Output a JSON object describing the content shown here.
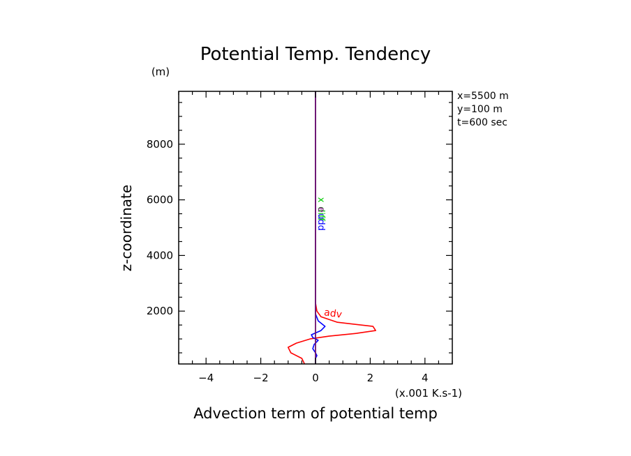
{
  "chart_data": {
    "type": "line",
    "title": "Potential Temp. Tendency",
    "xlabel": "Advection term of potential temp",
    "ylabel": "z-coordinate",
    "x_unit": "(x.001 K.s-1)",
    "y_unit": "(m)",
    "xlim": [
      -5,
      5
    ],
    "ylim": [
      100,
      9900
    ],
    "x_ticks": [
      -4,
      -2,
      0,
      2,
      4
    ],
    "x_tick_labels": [
      "−4",
      "−2",
      "0",
      "2",
      "4"
    ],
    "y_ticks": [
      2000,
      4000,
      6000,
      8000
    ],
    "y_tick_labels": [
      "2000",
      "4000",
      "6000",
      "8000"
    ],
    "grid": false,
    "info_lines": [
      "x=5500 m",
      "y=100 m",
      "t=600 sec"
    ],
    "series": [
      {
        "name": "adv",
        "color": "#ff0000",
        "points": [
          [
            -0.4,
            100
          ],
          [
            -0.5,
            300
          ],
          [
            -0.9,
            500
          ],
          [
            -1.0,
            700
          ],
          [
            -0.7,
            850
          ],
          [
            -0.2,
            1000
          ],
          [
            0.5,
            1100
          ],
          [
            1.5,
            1200
          ],
          [
            2.2,
            1300
          ],
          [
            2.1,
            1450
          ],
          [
            0.8,
            1600
          ],
          [
            0.2,
            1800
          ],
          [
            0.05,
            2000
          ],
          [
            0.0,
            2300
          ],
          [
            0.0,
            9900
          ]
        ]
      },
      {
        "name": "",
        "color": "#0000ff",
        "points": [
          [
            0.0,
            100
          ],
          [
            0.0,
            300
          ],
          [
            0.05,
            400
          ],
          [
            0.0,
            500
          ],
          [
            -0.1,
            650
          ],
          [
            -0.05,
            800
          ],
          [
            0.1,
            950
          ],
          [
            -0.1,
            1050
          ],
          [
            -0.15,
            1150
          ],
          [
            0.2,
            1300
          ],
          [
            0.35,
            1450
          ],
          [
            0.1,
            1650
          ],
          [
            0.0,
            1900
          ],
          [
            0.0,
            2300
          ],
          [
            0.0,
            9900
          ]
        ]
      },
      {
        "name": "",
        "color": "#00aa00",
        "points": [
          [
            0.0,
            100
          ],
          [
            0.0,
            9900
          ]
        ]
      },
      {
        "name": "",
        "color": "#800080",
        "points": [
          [
            0.0,
            100
          ],
          [
            0.0,
            9900
          ]
        ]
      }
    ],
    "overlap_labels": [
      {
        "text": "x",
        "color": "#00cc00",
        "at": [
          0,
          6000
        ]
      },
      {
        "text": "diff",
        "color": "#00cc00",
        "at": [
          0,
          5500
        ]
      },
      {
        "text": "udd",
        "color": "#0000ff",
        "at": [
          0,
          5200
        ]
      },
      {
        "text": "e",
        "color": "#800080",
        "at": [
          0,
          5650
        ]
      }
    ]
  }
}
